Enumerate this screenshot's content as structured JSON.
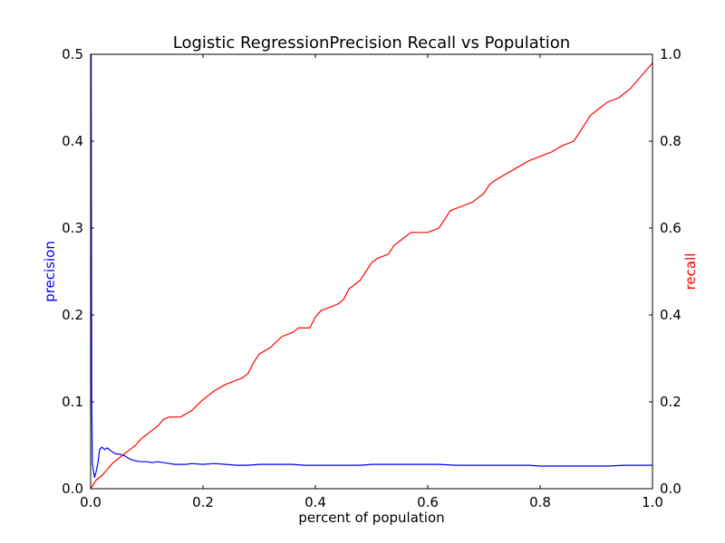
{
  "chart_data": {
    "type": "line",
    "title": "Logistic RegressionPrecision Recall vs Population",
    "xlabel": "percent of population",
    "ylabel_left": "precision",
    "ylabel_right": "recall",
    "xlim": [
      0,
      1
    ],
    "ylim_left": [
      0,
      0.5
    ],
    "ylim_right": [
      0,
      1
    ],
    "grid": false,
    "x_ticks": [
      "0.0",
      "0.2",
      "0.4",
      "0.6",
      "0.8",
      "1.0"
    ],
    "y_left_ticks": [
      "0.0",
      "0.1",
      "0.2",
      "0.3",
      "0.4",
      "0.5"
    ],
    "y_right_ticks": [
      "0.0",
      "0.2",
      "0.4",
      "0.6",
      "0.8",
      "1.0"
    ],
    "colors": {
      "precision": "#0000ff",
      "recall": "#ff0000",
      "axis": "#000000"
    },
    "series": [
      {
        "axis": "left",
        "x": [
          0.0,
          0.001,
          0.002,
          0.003,
          0.005,
          0.007,
          0.01,
          0.013,
          0.016,
          0.02,
          0.025,
          0.03,
          0.035,
          0.04,
          0.045,
          0.05,
          0.055,
          0.06,
          0.065,
          0.07,
          0.075,
          0.08,
          0.09,
          0.1,
          0.11,
          0.12,
          0.13,
          0.14,
          0.15,
          0.16,
          0.17,
          0.18,
          0.2,
          0.22,
          0.24,
          0.26,
          0.28,
          0.3,
          0.32,
          0.34,
          0.36,
          0.38,
          0.4,
          0.42,
          0.45,
          0.48,
          0.5,
          0.52,
          0.55,
          0.58,
          0.6,
          0.62,
          0.65,
          0.68,
          0.7,
          0.72,
          0.75,
          0.78,
          0.8,
          0.82,
          0.85,
          0.88,
          0.9,
          0.92,
          0.95,
          0.98,
          1.0
        ],
        "y": [
          0.5,
          0.5,
          0.1,
          0.03,
          0.02,
          0.013,
          0.02,
          0.03,
          0.045,
          0.048,
          0.045,
          0.047,
          0.044,
          0.042,
          0.04,
          0.04,
          0.039,
          0.038,
          0.036,
          0.034,
          0.033,
          0.032,
          0.031,
          0.031,
          0.03,
          0.031,
          0.03,
          0.029,
          0.028,
          0.028,
          0.028,
          0.029,
          0.028,
          0.029,
          0.028,
          0.027,
          0.027,
          0.028,
          0.028,
          0.028,
          0.028,
          0.027,
          0.027,
          0.027,
          0.027,
          0.027,
          0.028,
          0.028,
          0.028,
          0.028,
          0.028,
          0.028,
          0.027,
          0.027,
          0.027,
          0.027,
          0.027,
          0.027,
          0.026,
          0.026,
          0.026,
          0.026,
          0.026,
          0.026,
          0.027,
          0.027,
          0.027
        ]
      },
      {
        "axis": "right",
        "x": [
          0.0,
          0.01,
          0.02,
          0.03,
          0.04,
          0.05,
          0.06,
          0.07,
          0.08,
          0.09,
          0.1,
          0.11,
          0.12,
          0.13,
          0.14,
          0.16,
          0.18,
          0.2,
          0.21,
          0.22,
          0.24,
          0.26,
          0.27,
          0.28,
          0.29,
          0.3,
          0.32,
          0.34,
          0.36,
          0.37,
          0.38,
          0.39,
          0.4,
          0.41,
          0.42,
          0.44,
          0.45,
          0.46,
          0.48,
          0.49,
          0.5,
          0.51,
          0.53,
          0.54,
          0.55,
          0.56,
          0.57,
          0.58,
          0.6,
          0.62,
          0.63,
          0.64,
          0.66,
          0.68,
          0.7,
          0.71,
          0.72,
          0.74,
          0.76,
          0.78,
          0.8,
          0.82,
          0.84,
          0.86,
          0.87,
          0.88,
          0.89,
          0.9,
          0.91,
          0.92,
          0.94,
          0.96,
          0.98,
          1.0
        ],
        "y": [
          0.0,
          0.02,
          0.03,
          0.045,
          0.06,
          0.07,
          0.08,
          0.09,
          0.1,
          0.115,
          0.125,
          0.135,
          0.145,
          0.16,
          0.165,
          0.165,
          0.18,
          0.205,
          0.215,
          0.225,
          0.24,
          0.25,
          0.255,
          0.265,
          0.29,
          0.31,
          0.325,
          0.35,
          0.36,
          0.37,
          0.37,
          0.37,
          0.395,
          0.41,
          0.415,
          0.425,
          0.435,
          0.46,
          0.48,
          0.5,
          0.52,
          0.53,
          0.54,
          0.56,
          0.57,
          0.58,
          0.59,
          0.59,
          0.59,
          0.6,
          0.62,
          0.64,
          0.65,
          0.66,
          0.68,
          0.7,
          0.71,
          0.725,
          0.74,
          0.755,
          0.765,
          0.775,
          0.79,
          0.8,
          0.82,
          0.84,
          0.86,
          0.87,
          0.88,
          0.89,
          0.9,
          0.92,
          0.95,
          0.98
        ]
      }
    ]
  }
}
